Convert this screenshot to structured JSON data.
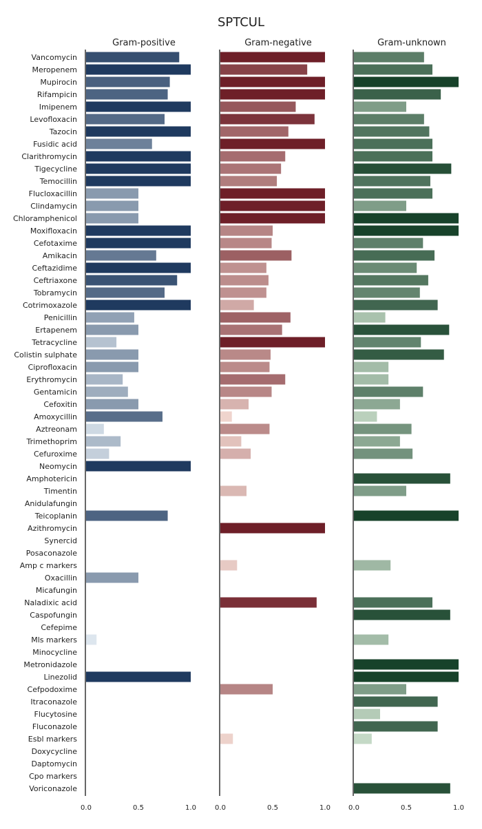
{
  "chart_data": {
    "type": "bar",
    "orientation": "horizontal",
    "title": "SPTCUL",
    "xlim": [
      0,
      1
    ],
    "xticks": [
      0.0,
      0.5,
      1.0
    ],
    "xtick_labels": [
      "0.0",
      "0.5",
      "1.0"
    ],
    "grid": false,
    "categories": [
      "Vancomycin",
      "Meropenem",
      "Mupirocin",
      "Rifampicin",
      "Imipenem",
      "Levofloxacin",
      "Tazocin",
      "Fusidic acid",
      "Clarithromycin",
      "Tigecycline",
      "Temocillin",
      "Flucloxacillin",
      "Clindamycin",
      "Chloramphenicol",
      "Moxifloxacin",
      "Cefotaxime",
      "Amikacin",
      "Ceftazidime",
      "Ceftriaxone",
      "Tobramycin",
      "Cotrimoxazole",
      "Penicillin",
      "Ertapenem",
      "Tetracycline",
      "Colistin sulphate",
      "Ciprofloxacin",
      "Erythromycin",
      "Gentamicin",
      "Cefoxitin",
      "Amoxycillin",
      "Aztreonam",
      "Trimethoprim",
      "Cefuroxime",
      "Neomycin",
      "Amphotericin",
      "Timentin",
      "Anidulafungin",
      "Teicoplanin",
      "Azithromycin",
      "Synercid",
      "Posaconazole",
      "Amp c markers",
      "Oxacillin",
      "Micafungin",
      "Naladixic acid",
      "Caspofungin",
      "Cefepime",
      "Mls markers",
      "Minocycline",
      "Metronidazole",
      "Linezolid",
      "Cefpodoxime",
      "Itraconazole",
      "Flucytosine",
      "Fluconazole",
      "Esbl markers",
      "Doxycycline",
      "Daptomycin",
      "Cpo markers",
      "Voriconazole"
    ],
    "series": [
      {
        "name": "Gram-positive",
        "color_dark": "#1f3a5f",
        "color_light": "#dde6ee",
        "values": [
          0.89,
          1.0,
          0.8,
          0.78,
          1.0,
          0.75,
          1.0,
          0.63,
          1.0,
          1.0,
          1.0,
          0.5,
          0.5,
          0.5,
          1.0,
          1.0,
          0.67,
          1.0,
          0.87,
          0.75,
          1.0,
          0.46,
          0.5,
          0.29,
          0.5,
          0.5,
          0.35,
          0.4,
          0.5,
          0.73,
          0.17,
          0.33,
          0.22,
          1.0,
          null,
          null,
          null,
          0.78,
          null,
          null,
          null,
          null,
          0.5,
          null,
          null,
          null,
          null,
          0.1,
          null,
          null,
          1.0,
          null,
          null,
          null,
          null,
          null,
          null,
          null,
          null,
          null
        ]
      },
      {
        "name": "Gram-negative",
        "color_dark": "#6e1f28",
        "color_light": "#f0d6cf",
        "values": [
          1.0,
          0.83,
          1.0,
          1.0,
          0.72,
          0.9,
          0.65,
          1.0,
          0.62,
          0.58,
          0.54,
          1.0,
          1.0,
          1.0,
          0.5,
          0.49,
          0.68,
          0.44,
          0.46,
          0.44,
          0.32,
          0.67,
          0.59,
          1.0,
          0.48,
          0.47,
          0.62,
          0.49,
          0.27,
          0.11,
          0.47,
          0.2,
          0.29,
          null,
          null,
          0.25,
          null,
          null,
          1.0,
          null,
          null,
          0.16,
          null,
          null,
          0.92,
          null,
          null,
          null,
          null,
          null,
          null,
          0.5,
          null,
          null,
          null,
          0.12,
          null,
          null,
          null,
          null
        ]
      },
      {
        "name": "Gram-unknown",
        "color_dark": "#17422a",
        "color_light": "#d3e6d3",
        "values": [
          0.67,
          0.75,
          1.0,
          0.83,
          0.5,
          0.67,
          0.72,
          0.75,
          0.75,
          0.93,
          0.73,
          0.75,
          0.5,
          1.0,
          1.0,
          0.66,
          0.77,
          0.6,
          0.71,
          0.63,
          0.8,
          0.3,
          0.91,
          0.64,
          0.86,
          0.33,
          0.33,
          0.66,
          0.44,
          0.22,
          0.55,
          0.44,
          0.56,
          null,
          0.92,
          0.5,
          null,
          1.0,
          null,
          null,
          null,
          0.35,
          null,
          null,
          0.75,
          0.92,
          null,
          0.33,
          null,
          1.0,
          1.0,
          0.5,
          0.8,
          0.25,
          0.8,
          0.17,
          null,
          null,
          null,
          0.92
        ]
      }
    ]
  }
}
